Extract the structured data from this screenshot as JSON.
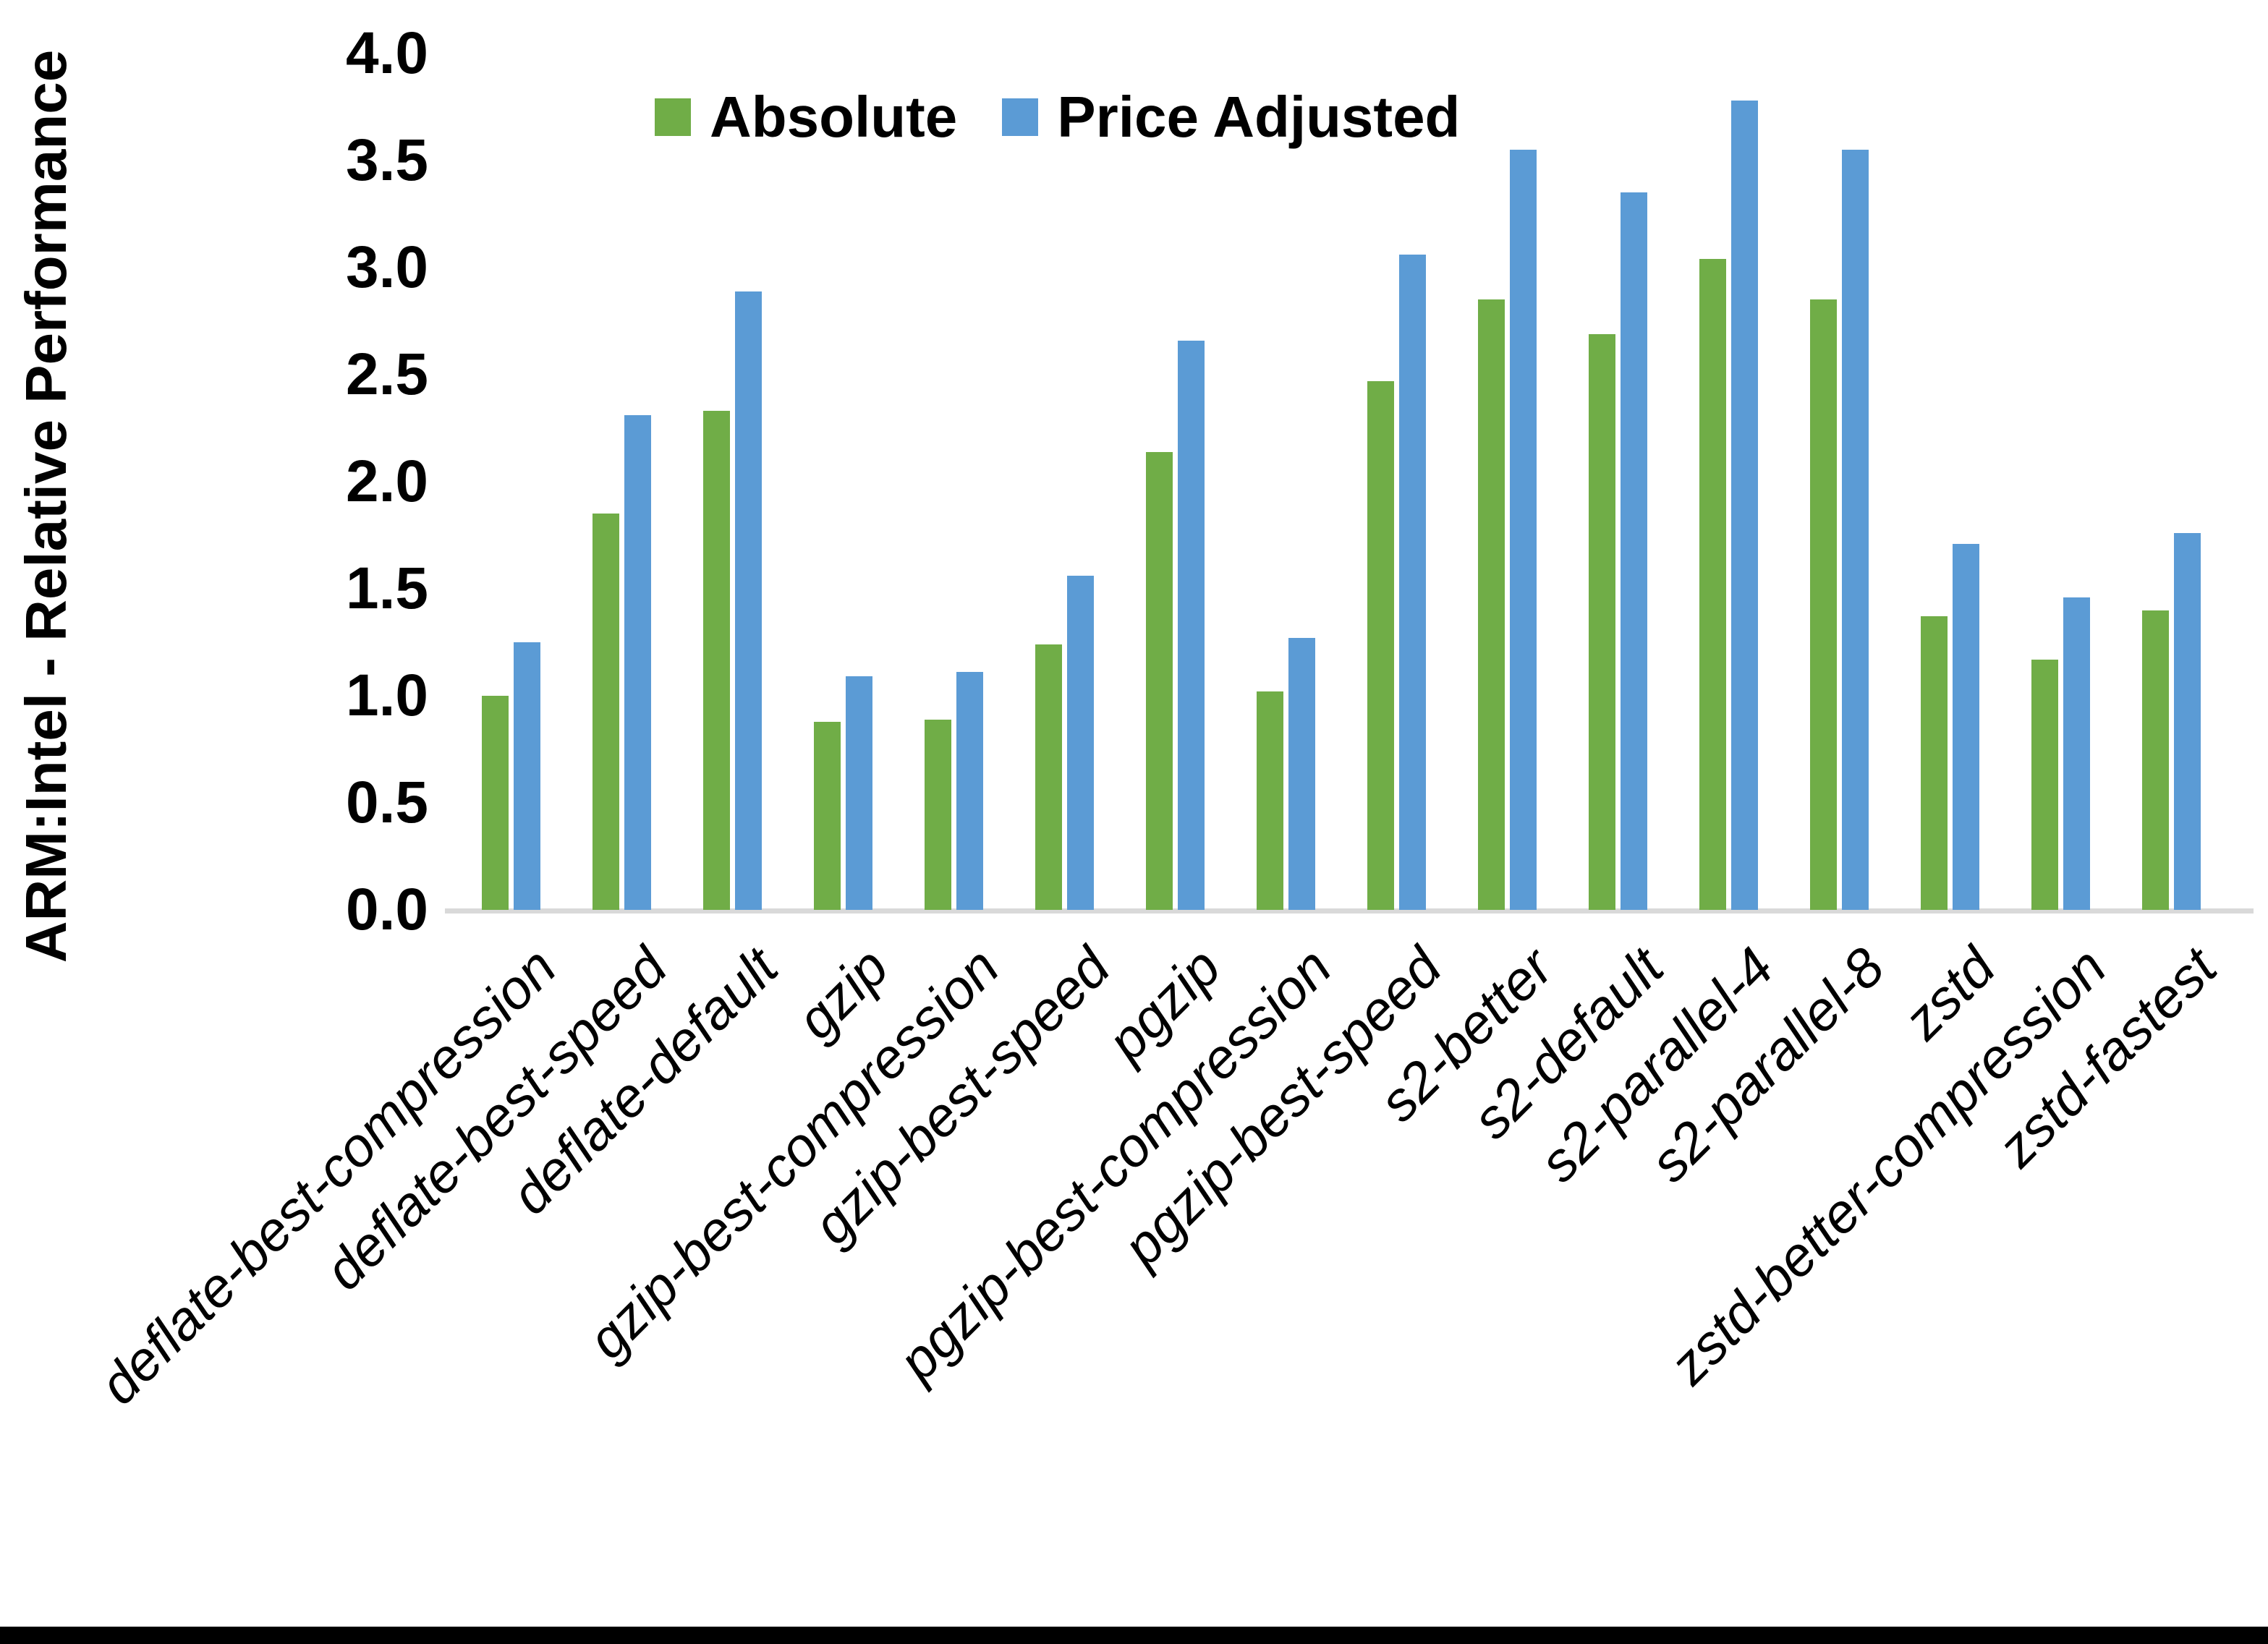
{
  "figure": {
    "background": "#FFFFFF",
    "bottom_border_color": "#000000"
  },
  "chart_data": {
    "type": "bar",
    "title": "",
    "xlabel": "",
    "ylabel": "ARM:Intel - Relative Performance",
    "ylim": [
      0.0,
      4.0
    ],
    "ytick_step": 0.5,
    "ytick_labels": [
      "0.0",
      "0.5",
      "1.0",
      "1.5",
      "2.0",
      "2.5",
      "3.0",
      "3.5",
      "4.0"
    ],
    "grid": false,
    "legend_position": "top-center-inside",
    "axis_line_color": "#D9D9D9",
    "categories": [
      "deflate-best-compression",
      "deflate-best-speed",
      "deflate-default",
      "gzip",
      "gzip-best-compression",
      "gzip-best-speed",
      "pgzip",
      "pgzip-best-compression",
      "pgzip-best-speed",
      "s2-better",
      "s2-default",
      "s2-parallel-4",
      "s2-parallel-8",
      "zstd",
      "zstd-better-compression",
      "zstd-fastest"
    ],
    "series": [
      {
        "name": "Absolute",
        "color": "#70AD47",
        "values": [
          1.0,
          1.85,
          2.33,
          0.88,
          0.89,
          1.24,
          2.14,
          1.02,
          2.47,
          2.85,
          2.69,
          3.04,
          2.85,
          1.37,
          1.17,
          1.4
        ]
      },
      {
        "name": "Price Adjusted",
        "color": "#5B9BD5",
        "values": [
          1.25,
          2.31,
          2.89,
          1.09,
          1.11,
          1.56,
          2.66,
          1.27,
          3.06,
          3.55,
          3.35,
          3.78,
          3.55,
          1.71,
          1.46,
          1.76
        ]
      }
    ]
  }
}
